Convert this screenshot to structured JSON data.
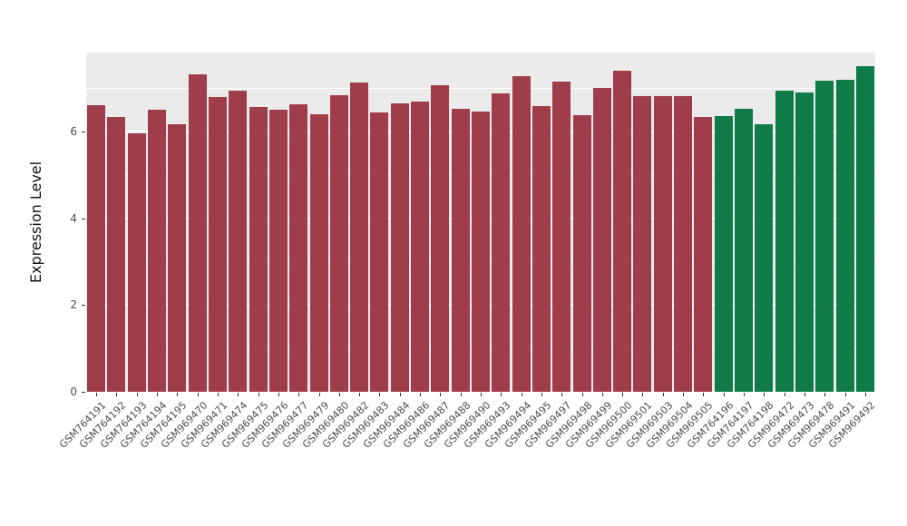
{
  "chart_data": {
    "type": "bar",
    "title": "",
    "xlabel": "",
    "ylabel": "Expression Level",
    "ylim": [
      0,
      7.82
    ],
    "yticks": [
      0,
      2,
      4,
      6
    ],
    "minor_ticks": [
      1,
      3,
      5,
      7
    ],
    "grid": true,
    "legend_position": "none",
    "categories": [
      "GSM764191",
      "GSM764192",
      "GSM764193",
      "GSM764194",
      "GSM764195",
      "GSM969470",
      "GSM969471",
      "GSM969474",
      "GSM969475",
      "GSM969476",
      "GSM969477",
      "GSM969479",
      "GSM969480",
      "GSM969482",
      "GSM969483",
      "GSM969484",
      "GSM969486",
      "GSM969487",
      "GSM969488",
      "GSM969490",
      "GSM969493",
      "GSM969494",
      "GSM969495",
      "GSM969497",
      "GSM969498",
      "GSM969499",
      "GSM969500",
      "GSM969501",
      "GSM969503",
      "GSM969504",
      "GSM969505",
      "GSM764196",
      "GSM764197",
      "GSM764198",
      "GSM969472",
      "GSM969473",
      "GSM969478",
      "GSM969491",
      "GSM969492"
    ],
    "series": [
      {
        "name": "Expression Level",
        "values": [
          6.6,
          6.33,
          5.96,
          6.5,
          6.17,
          7.32,
          6.8,
          6.94,
          6.57,
          6.5,
          6.63,
          6.4,
          6.84,
          7.13,
          6.44,
          6.65,
          6.69,
          7.07,
          6.52,
          6.46,
          6.88,
          7.28,
          6.59,
          7.15,
          6.38,
          7.0,
          7.4,
          6.82,
          6.82,
          6.82,
          6.33,
          6.35,
          6.52,
          6.17,
          6.94,
          6.9,
          7.17,
          7.2,
          7.5
        ]
      }
    ],
    "groups": [
      "red",
      "red",
      "red",
      "red",
      "red",
      "red",
      "red",
      "red",
      "red",
      "red",
      "red",
      "red",
      "red",
      "red",
      "red",
      "red",
      "red",
      "red",
      "red",
      "red",
      "red",
      "red",
      "red",
      "red",
      "red",
      "red",
      "red",
      "red",
      "red",
      "red",
      "red",
      "green",
      "green",
      "green",
      "green",
      "green",
      "green",
      "green",
      "green"
    ],
    "group_colors": {
      "red": "#A03D4B",
      "green": "#0F7B47"
    }
  },
  "style": {
    "panel_bg": "#EBEBEB",
    "grid_color": "#FFFFFF",
    "tick_color": "#333333",
    "tick_label_color": "#4D4D4D"
  }
}
